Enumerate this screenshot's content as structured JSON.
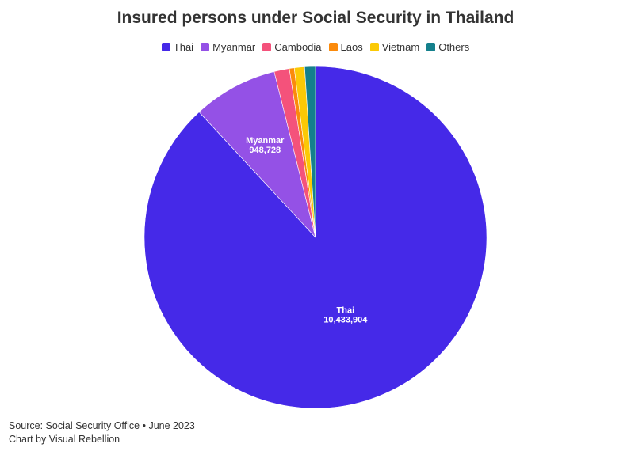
{
  "chart_data": {
    "type": "pie",
    "title": "Insured persons under Social Security in Thailand",
    "legend_position": "top",
    "slices": [
      {
        "name": "Thai",
        "value": 10433904,
        "label": "Thai",
        "value_label": "10,433,904",
        "color": "#4529e8"
      },
      {
        "name": "Myanmar",
        "value": 948728,
        "label": "Myanmar",
        "value_label": "948,728",
        "color": "#9451e6"
      },
      {
        "name": "Cambodia",
        "value": 170000,
        "color": "#f4527b"
      },
      {
        "name": "Laos",
        "value": 55000,
        "color": "#fb8a0b"
      },
      {
        "name": "Vietnam",
        "value": 115000,
        "color": "#fbc905"
      },
      {
        "name": "Others",
        "value": 120000,
        "color": "#14808c"
      }
    ]
  },
  "footer": {
    "source": "Source: Social Security Office • June 2023",
    "credit": "Chart by Visual Rebellion"
  }
}
